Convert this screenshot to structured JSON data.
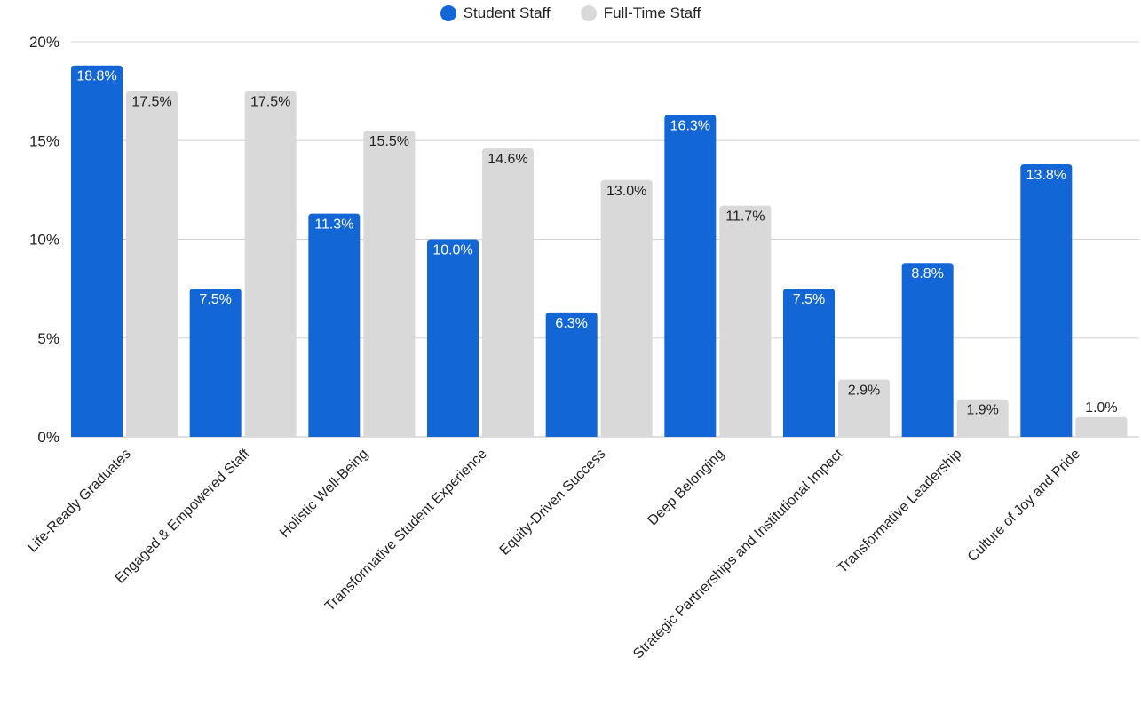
{
  "chart_data": {
    "type": "bar",
    "title": "",
    "xlabel": "",
    "ylabel": "",
    "ylim": [
      0,
      20
    ],
    "yticks": [
      0,
      5,
      10,
      15,
      20
    ],
    "ytick_labels": [
      "0%",
      "5%",
      "10%",
      "15%",
      "20%"
    ],
    "grid": true,
    "legend_position": "top-center",
    "categories": [
      "Life-Ready Graduates",
      "Engaged & Empowered Staff",
      "Holistic Well-Being",
      "Transformative Student Experience",
      "Equity-Driven Success",
      "Deep Belonging",
      "Strategic Partnerships and Institutional Impact",
      "Transformative Leadership",
      "Culture of Joy and Pride"
    ],
    "series": [
      {
        "name": "Student Staff",
        "color": "#1366d6",
        "label_color": "#ffffff",
        "values": [
          18.8,
          7.5,
          11.3,
          10.0,
          6.3,
          16.3,
          7.5,
          8.8,
          13.8
        ],
        "labels": [
          "18.8%",
          "7.5%",
          "11.3%",
          "10.0%",
          "6.3%",
          "16.3%",
          "7.5%",
          "8.8%",
          "13.8%"
        ]
      },
      {
        "name": "Full-Time Staff",
        "color": "#d9d9d9",
        "label_color": "#222222",
        "values": [
          17.5,
          17.5,
          15.5,
          14.6,
          13.0,
          11.7,
          2.9,
          1.9,
          1.0
        ],
        "labels": [
          "17.5%",
          "17.5%",
          "15.5%",
          "14.6%",
          "13.0%",
          "11.7%",
          "2.9%",
          "1.9%",
          "1.0%"
        ]
      }
    ]
  }
}
